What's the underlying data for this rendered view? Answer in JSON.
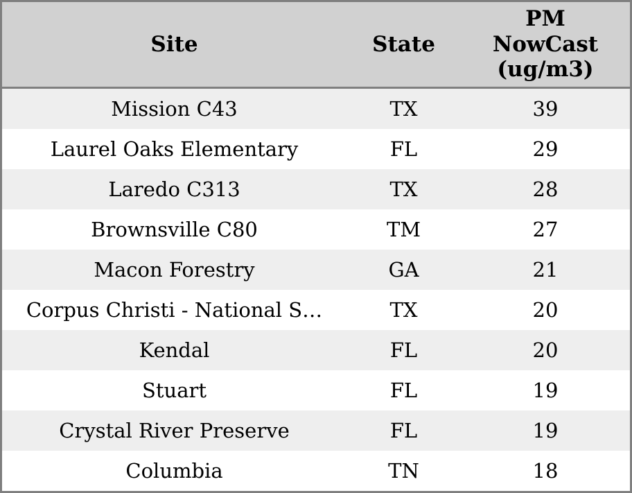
{
  "colors": {
    "border": "#7f7f7f",
    "header_bg": "#d1d1d1",
    "row_alt_bg": "#eeeeee",
    "row_bg": "#ffffff",
    "text": "#000000"
  },
  "chart_data": {
    "type": "table",
    "columns": [
      {
        "id": "site",
        "label": "Site"
      },
      {
        "id": "state",
        "label": "State"
      },
      {
        "id": "pm_nowcast",
        "label": "PM\nNowCast\n(ug/m3)",
        "unit": "ug/m3"
      }
    ],
    "rows": [
      {
        "site": "Mission C43",
        "state": "TX",
        "pm_nowcast": 39
      },
      {
        "site": "Laurel Oaks Elementary",
        "state": "FL",
        "pm_nowcast": 29
      },
      {
        "site": "Laredo C313",
        "state": "TX",
        "pm_nowcast": 28
      },
      {
        "site": "Brownsville C80",
        "state": "TM",
        "pm_nowcast": 27
      },
      {
        "site": "Macon Forestry",
        "state": "GA",
        "pm_nowcast": 21
      },
      {
        "site": "Corpus Christi - National S…",
        "state": "TX",
        "pm_nowcast": 20
      },
      {
        "site": "Kendal",
        "state": "FL",
        "pm_nowcast": 20
      },
      {
        "site": "Stuart",
        "state": "FL",
        "pm_nowcast": 19
      },
      {
        "site": "Crystal River Preserve",
        "state": "FL",
        "pm_nowcast": 19
      },
      {
        "site": "Columbia",
        "state": "TN",
        "pm_nowcast": 18
      }
    ]
  }
}
